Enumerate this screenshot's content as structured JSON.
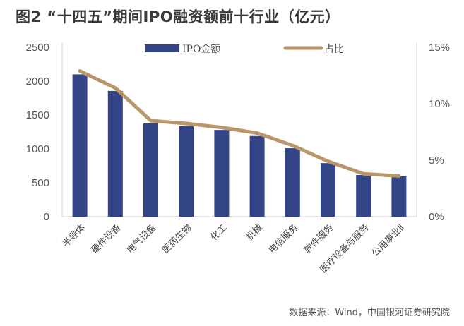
{
  "header": {
    "title": "图2  “十四五”期间IPO融资额前十行业（亿元）"
  },
  "footer": {
    "source": "数据来源：Wind，中国银河证券研究院"
  },
  "colors": {
    "bar": "#334586",
    "line": "#B8956A",
    "axis": "#d0d0d0",
    "text": "#555555"
  },
  "chart_data": {
    "type": "bar",
    "title": "“十四五”期间IPO融资额前十行业（亿元）",
    "xlabel": "",
    "ylabel": "",
    "y2label": "",
    "categories": [
      "半导体",
      "硬件设备",
      "电气设备",
      "医药生物",
      "化工",
      "机械",
      "电信服务",
      "软件服务",
      "医疗设备与服务",
      "公用事业Ⅱ"
    ],
    "series": [
      {
        "name": "IPO金额",
        "type": "bar",
        "axis": "left",
        "values": [
          2100,
          1855,
          1375,
          1335,
          1280,
          1190,
          1010,
          790,
          615,
          595
        ]
      },
      {
        "name": "占比",
        "type": "line",
        "axis": "right",
        "unit": "%",
        "values": [
          12.9,
          11.4,
          8.5,
          8.25,
          7.9,
          7.4,
          6.3,
          4.9,
          3.8,
          3.6
        ]
      }
    ],
    "ylim": [
      0,
      2500
    ],
    "yticks": [
      0,
      500,
      1000,
      1500,
      2000,
      2500
    ],
    "y2lim": [
      0,
      15
    ],
    "y2ticks": [
      "0%",
      "5%",
      "10%",
      "15%"
    ],
    "y2tick_values": [
      0,
      5,
      10,
      15
    ],
    "grid": false,
    "legend": {
      "position": "top-center",
      "entries": [
        "IPO金额",
        "占比"
      ]
    }
  }
}
